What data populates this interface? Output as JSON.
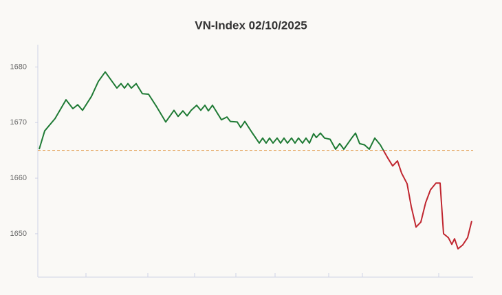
{
  "chart_data": {
    "type": "line",
    "title": "VN-Index 02/10/2025",
    "x": [
      2,
      10,
      25,
      41,
      51,
      58,
      65,
      78,
      88,
      98,
      108,
      115,
      121,
      126,
      131,
      136,
      143,
      152,
      161,
      173,
      186,
      198,
      204,
      211,
      217,
      223,
      231,
      237,
      243,
      248,
      254,
      267,
      275,
      280,
      290,
      295,
      301,
      311,
      322,
      327,
      332,
      337,
      342,
      348,
      353,
      358,
      363,
      369,
      374,
      379,
      385,
      390,
      395,
      401,
      405,
      411,
      417,
      425,
      433,
      439,
      445,
      457,
      462,
      468,
      475,
      482,
      490,
      498,
      508,
      516,
      523,
      529,
      537,
      543,
      550,
      557,
      564,
      571,
      579,
      585,
      590,
      597,
      602,
      606,
      611,
      618,
      625,
      631
    ],
    "series": [
      {
        "name": "VN-Index",
        "values": [
          1665.2,
          1668.5,
          1670.7,
          1674.1,
          1672.5,
          1673.2,
          1672.2,
          1674.7,
          1677.4,
          1679.1,
          1677.4,
          1676.2,
          1677,
          1676.2,
          1677,
          1676.2,
          1677,
          1675.2,
          1675.1,
          1672.8,
          1670.1,
          1672.2,
          1671.1,
          1672.1,
          1671.2,
          1672.2,
          1673.1,
          1672.2,
          1673.1,
          1672.1,
          1673.1,
          1670.5,
          1671,
          1670.2,
          1670.1,
          1669.1,
          1670.2,
          1668.3,
          1666.3,
          1667.2,
          1666.3,
          1667.2,
          1666.3,
          1667.2,
          1666.3,
          1667.2,
          1666.3,
          1667.2,
          1666.3,
          1667.2,
          1666.3,
          1667.2,
          1666.3,
          1668,
          1667.3,
          1668.1,
          1667.2,
          1667,
          1665.2,
          1666.2,
          1665.2,
          1667.3,
          1668.1,
          1666.2,
          1666,
          1665.2,
          1667.2,
          1666,
          1663.8,
          1662.2,
          1663.1,
          1660.9,
          1659,
          1654.9,
          1651.2,
          1652.1,
          1655.6,
          1657.9,
          1659.1,
          1659.1,
          1650,
          1649.3,
          1648.1,
          1649.1,
          1647.3,
          1648,
          1649.3,
          1652.3
        ],
        "color_above": "#1e7a34",
        "color_below": "#c0262f"
      }
    ],
    "reference": 1665,
    "reference_color": "#e0903a",
    "xlim": [
      0,
      633
    ],
    "xticks": [
      70,
      160,
      228,
      288,
      345,
      423,
      472,
      583
    ],
    "ylim": [
      1642.2,
      1684
    ],
    "yticks": [
      1650,
      1660,
      1670,
      1680
    ]
  }
}
